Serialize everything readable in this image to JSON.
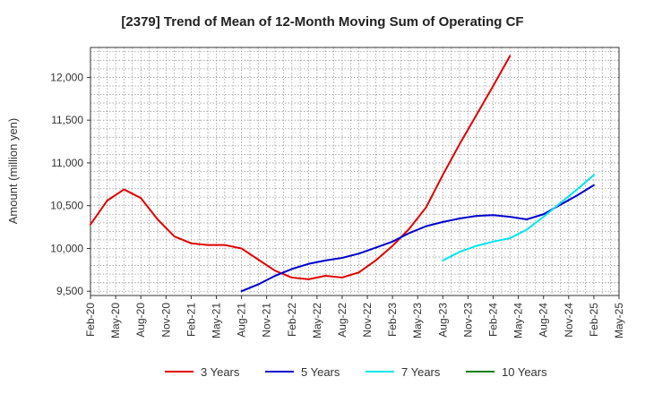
{
  "chart_data": {
    "type": "line",
    "title": "[2379]  Trend of Mean of 12-Month Moving Sum of Operating CF",
    "xlabel": "",
    "ylabel": "Amount (million yen)",
    "ylim": [
      9450,
      12350
    ],
    "yticks": [
      9500,
      10000,
      10500,
      11000,
      11500,
      12000
    ],
    "ytick_labels": [
      "9,500",
      "10,000",
      "10,500",
      "11,000",
      "11,500",
      "12,000"
    ],
    "xtick_labels": [
      "Feb-20",
      "May-20",
      "Aug-20",
      "Nov-20",
      "Feb-21",
      "May-21",
      "Aug-21",
      "Nov-21",
      "Feb-22",
      "May-22",
      "Aug-22",
      "Nov-22",
      "Feb-23",
      "May-23",
      "Aug-23",
      "Nov-23",
      "Feb-24",
      "May-24",
      "Aug-24",
      "Nov-24",
      "Feb-25",
      "May-25"
    ],
    "x_unit": "month index from Feb-20",
    "grid": true,
    "legend_position": "bottom",
    "series": [
      {
        "name": "3 Years",
        "color": "#e00000",
        "x": [
          0,
          2,
          4,
          6,
          8,
          10,
          12,
          14,
          16,
          18,
          20,
          22,
          24,
          26,
          28,
          30,
          32,
          34,
          36,
          38,
          40,
          42,
          44,
          46,
          48,
          50,
          52,
          54,
          56,
          58,
          60
        ],
        "values": [
          10280,
          10560,
          10690,
          10590,
          10340,
          10140,
          10060,
          10040,
          10040,
          10000,
          9870,
          9740,
          9660,
          9640,
          9680,
          9660,
          9720,
          9860,
          10030,
          10230,
          10480,
          10860,
          11220,
          11560,
          11900,
          12250,
          null,
          null,
          null,
          null,
          null
        ]
      },
      {
        "name": "5 Years",
        "color": "#0000cc",
        "x": [
          18,
          20,
          22,
          24,
          26,
          28,
          30,
          32,
          34,
          36,
          38,
          40,
          42,
          44,
          46,
          48,
          50,
          52,
          54,
          56,
          58,
          60
        ],
        "values": [
          9500,
          9580,
          9680,
          9760,
          9820,
          9860,
          9890,
          9940,
          10010,
          10080,
          10180,
          10260,
          10310,
          10350,
          10380,
          10390,
          10370,
          10340,
          10400,
          10510,
          10620,
          10740
        ]
      },
      {
        "name": "7 Years",
        "color": "#00e5ee",
        "x": [
          42,
          44,
          46,
          48,
          50,
          52,
          54,
          56,
          58,
          60
        ],
        "values": [
          9860,
          9960,
          10030,
          10080,
          10120,
          10220,
          10370,
          10530,
          10690,
          10860
        ]
      },
      {
        "name": "10 Years",
        "color": "#008000",
        "x": [],
        "values": []
      }
    ]
  }
}
